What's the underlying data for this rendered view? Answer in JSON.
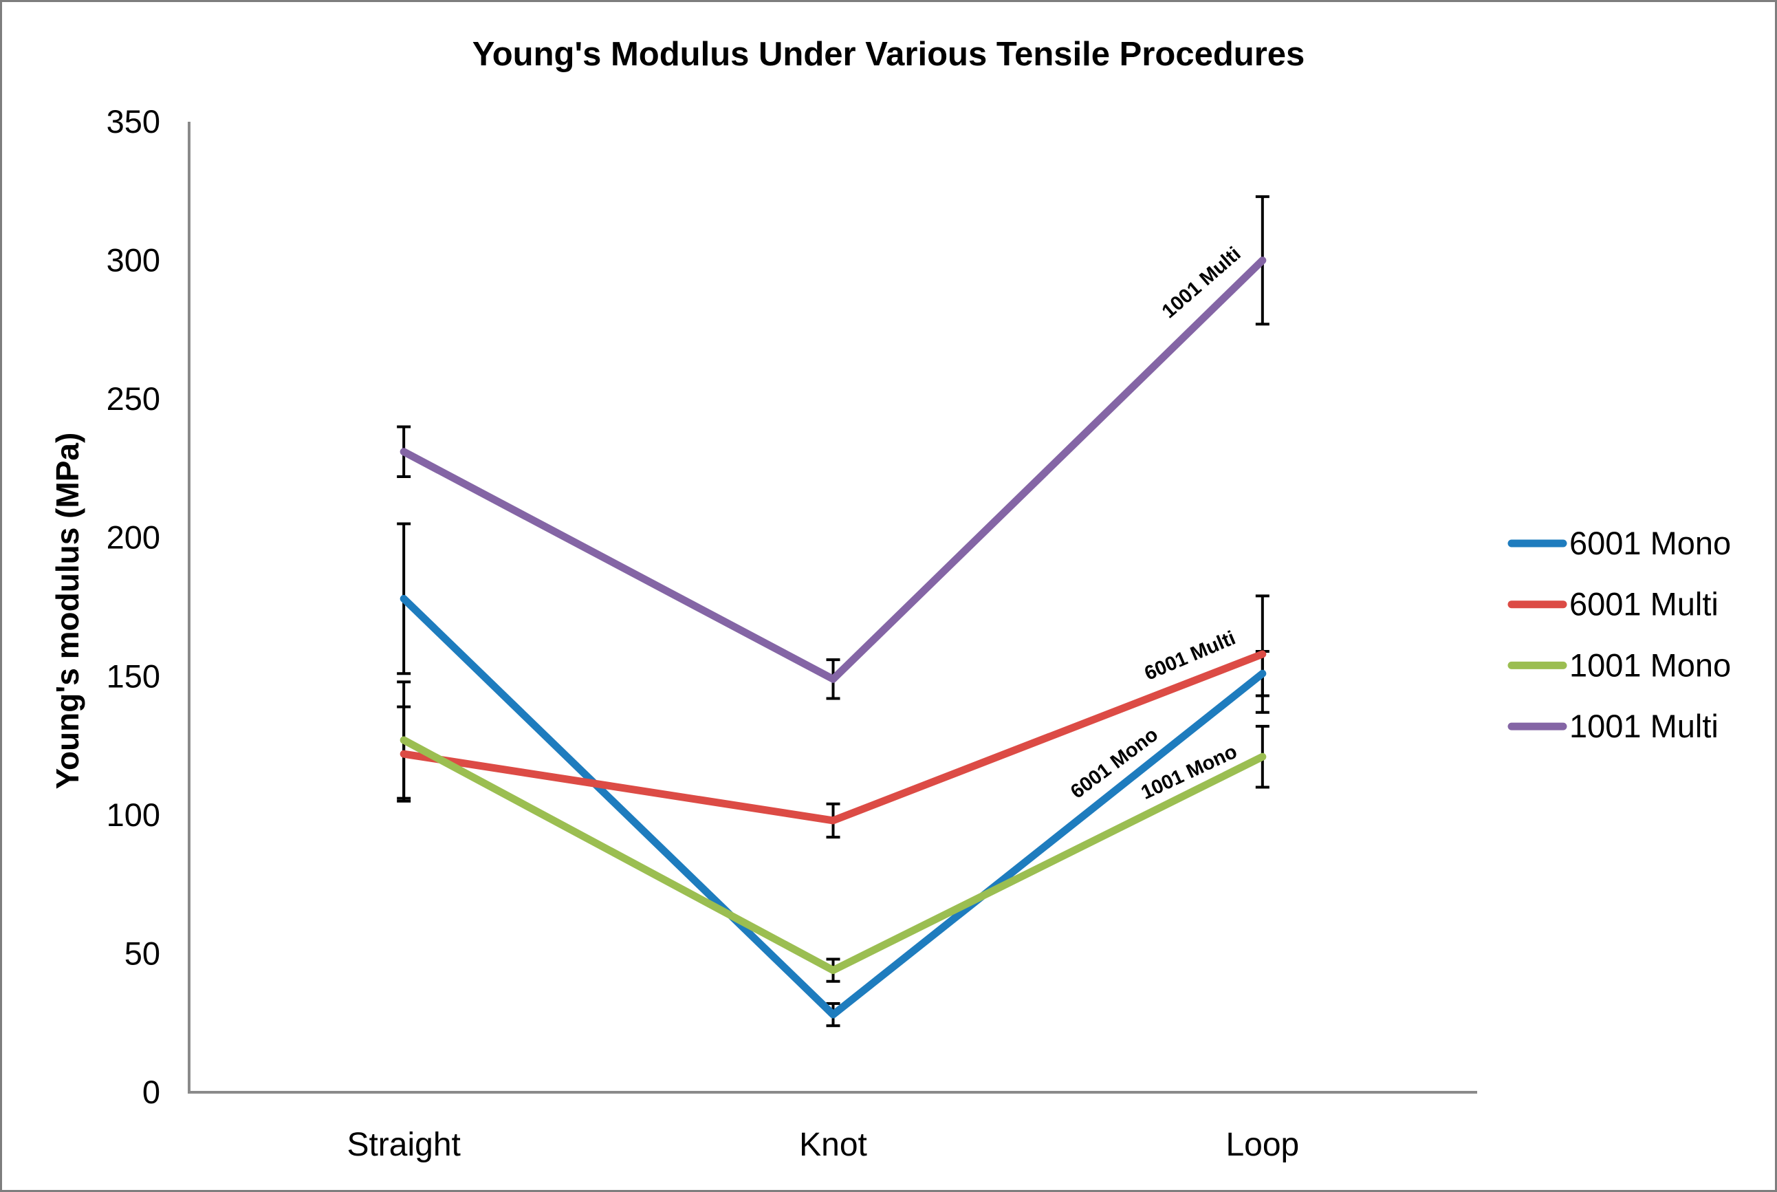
{
  "window": {
    "background": "#FFFFFF",
    "border_color": "#7E7E7E"
  },
  "chart_data": {
    "type": "line",
    "title": "Young's Modulus Under Various Tensile Procedures",
    "xlabel": "",
    "ylabel": "Young's modulus (MPa)",
    "categories": [
      "Straight",
      "Knot",
      "Loop"
    ],
    "y_axis": {
      "min": 0,
      "max": 350,
      "tick_interval": 50,
      "ticks": [
        0,
        50,
        100,
        150,
        200,
        250,
        300,
        350
      ]
    },
    "gridlines": false,
    "axis_color": "#8A8A8A",
    "error_bar_color": "#000000",
    "legend": {
      "position": "right",
      "entries": [
        "6001 Mono",
        "6001 Multi",
        "1001 Mono",
        "1001 Multi"
      ]
    },
    "series": [
      {
        "name": "6001 Mono",
        "color": "#1E7CBE",
        "values": [
          178,
          28,
          151
        ],
        "errors": [
          27,
          4,
          8
        ],
        "line_label": {
          "text": "6001 Mono",
          "x": 1623,
          "y": 1114,
          "angle": -37
        }
      },
      {
        "name": "6001 Multi",
        "color": "#DC4B45",
        "values": [
          122,
          98,
          158
        ],
        "errors": [
          17,
          6,
          21
        ],
        "line_label": {
          "text": "6001 Multi",
          "x": 1731,
          "y": 959,
          "angle": -23
        }
      },
      {
        "name": "1001 Mono",
        "color": "#9BBE51",
        "values": [
          127,
          44,
          121
        ],
        "errors": [
          21,
          4,
          11
        ],
        "line_label": {
          "text": "1001 Mono",
          "x": 1730,
          "y": 1128,
          "angle": -25
        }
      },
      {
        "name": "1001 Multi",
        "color": "#8465A5",
        "values": [
          231,
          149,
          300
        ],
        "errors": [
          9,
          7,
          23
        ],
        "line_label": {
          "text": "1001 Multi",
          "x": 1750,
          "y": 415,
          "angle": -41
        }
      }
    ]
  }
}
